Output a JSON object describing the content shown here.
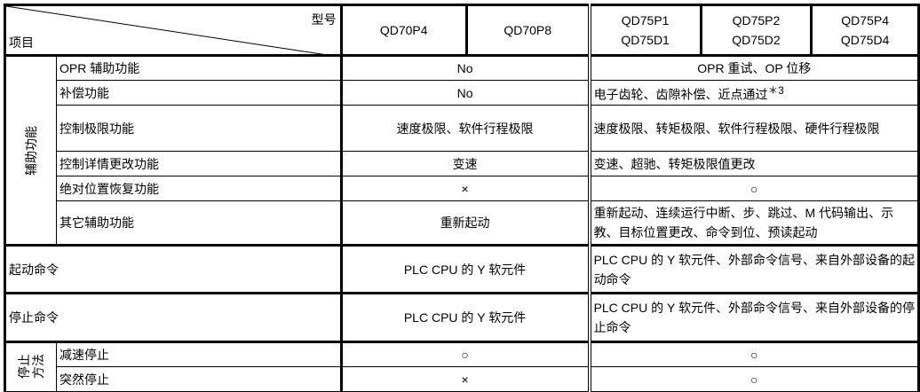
{
  "header": {
    "model_label": "型号",
    "item_label": "项目",
    "models": [
      "QD70P4",
      "QD70P8"
    ],
    "models2": [
      [
        "QD75P1",
        "QD75D1"
      ],
      [
        "QD75P2",
        "QD75D2"
      ],
      [
        "QD75P4",
        "QD75D4"
      ]
    ]
  },
  "group_aux": "辅助功能",
  "rows": [
    {
      "name": "OPR 辅助功能",
      "qd70": "No",
      "qd75": "OPR 重试、OP 位移"
    },
    {
      "name": "补偿功能",
      "qd70": "No",
      "qd75": "电子齿轮、齿隙补偿、近点通过",
      "note": "＊3"
    },
    {
      "name": "控制极限功能",
      "qd70": "速度极限、软件行程极限",
      "qd75": "速度极限、转矩极限、软件行程极限、硬件行程极限"
    },
    {
      "name": "控制详情更改功能",
      "qd70": "变速",
      "qd75": "变速、超驰、转矩极限值更改"
    },
    {
      "name": "绝对位置恢复功能",
      "qd70": "×",
      "qd75": "○"
    },
    {
      "name": "其它辅助功能",
      "qd70": "重新起动",
      "qd75": "重新起动、连续运行中断、步、跳过、M 代码输出、示教、目标位置更改、命令到位、预读起动"
    }
  ],
  "start": {
    "name": "起动命令",
    "qd70": "PLC CPU 的 Y 软元件",
    "qd75": "PLC CPU 的 Y 软元件、外部命令信号、来自外部设备的起动命令"
  },
  "stop": {
    "name": "停止命令",
    "qd70": "PLC CPU 的 Y 软元件",
    "qd75": "PLC CPU 的 Y 软元件、外部命令信号、来自外部设备的停止命令"
  },
  "stop_method": {
    "label1": "停止",
    "label2": "方法",
    "rows": [
      {
        "name": "减速停止",
        "qd70": "○",
        "qd75": "○"
      },
      {
        "name": "突然停止",
        "qd70": "×",
        "qd75": "○"
      }
    ]
  }
}
